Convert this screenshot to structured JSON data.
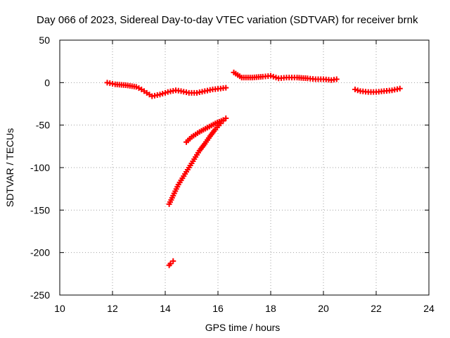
{
  "chart_data": {
    "type": "scatter",
    "title": "Day 066 of 2023, Sidereal Day-to-day VTEC variation (SDTVAR) for receiver brnk",
    "xlabel": "GPS time / hours",
    "ylabel": "SDTVAR / TECUs",
    "xlim": [
      10,
      24
    ],
    "ylim": [
      -250,
      50
    ],
    "xticks": [
      10,
      12,
      14,
      16,
      18,
      20,
      22,
      24
    ],
    "yticks": [
      -250,
      -200,
      -150,
      -100,
      -50,
      0,
      50
    ],
    "grid": true,
    "marker": "plus",
    "color": "#ff0000",
    "series": [
      {
        "points": [
          [
            11.8,
            0
          ],
          [
            12.1,
            -2
          ],
          [
            12.5,
            -3
          ],
          [
            12.9,
            -5
          ],
          [
            13.1,
            -8
          ],
          [
            13.3,
            -12
          ],
          [
            13.5,
            -16
          ],
          [
            13.8,
            -14
          ],
          [
            14.1,
            -11
          ],
          [
            14.4,
            -9
          ],
          [
            14.6,
            -10
          ],
          [
            14.9,
            -12
          ],
          [
            15.2,
            -12
          ],
          [
            15.5,
            -10
          ],
          [
            15.8,
            -8
          ],
          [
            16.1,
            -7
          ],
          [
            16.3,
            -6
          ]
        ]
      },
      {
        "points": [
          [
            16.6,
            12
          ],
          [
            16.9,
            6
          ],
          [
            17.3,
            6
          ],
          [
            17.7,
            7
          ],
          [
            18.0,
            8
          ],
          [
            18.3,
            5
          ],
          [
            18.6,
            6
          ],
          [
            19.0,
            6
          ],
          [
            19.4,
            5
          ],
          [
            19.7,
            4
          ],
          [
            20.0,
            4
          ],
          [
            20.3,
            3
          ],
          [
            20.5,
            4
          ]
        ]
      },
      {
        "points": [
          [
            21.2,
            -8
          ],
          [
            21.4,
            -10
          ],
          [
            21.7,
            -11
          ],
          [
            22.0,
            -11
          ],
          [
            22.3,
            -10
          ],
          [
            22.6,
            -9
          ],
          [
            22.9,
            -7
          ]
        ]
      },
      {
        "points": [
          [
            14.8,
            -70
          ],
          [
            15.0,
            -64
          ],
          [
            15.3,
            -58
          ],
          [
            15.6,
            -53
          ],
          [
            15.9,
            -48
          ],
          [
            16.2,
            -44
          ],
          [
            16.3,
            -42
          ]
        ]
      },
      {
        "points": [
          [
            14.15,
            -143
          ],
          [
            14.3,
            -133
          ],
          [
            14.5,
            -120
          ],
          [
            14.7,
            -110
          ],
          [
            14.9,
            -100
          ],
          [
            15.1,
            -90
          ],
          [
            15.3,
            -80
          ],
          [
            15.5,
            -72
          ],
          [
            15.7,
            -63
          ],
          [
            15.9,
            -55
          ],
          [
            16.1,
            -48
          ],
          [
            16.2,
            -45
          ]
        ]
      },
      {
        "points": [
          [
            14.15,
            -215
          ],
          [
            14.2,
            -213
          ],
          [
            14.3,
            -210
          ]
        ]
      }
    ]
  }
}
